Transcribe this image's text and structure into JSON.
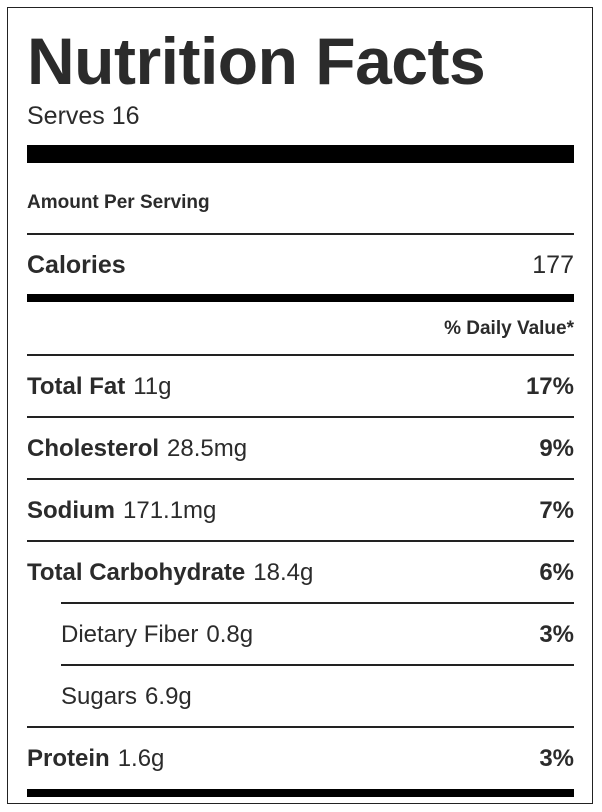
{
  "title": "Nutrition Facts",
  "serves": "Serves 16",
  "amount_per_serving": "Amount Per Serving",
  "calories": {
    "label": "Calories",
    "value": "177"
  },
  "daily_value_header": "% Daily Value*",
  "nutrients": [
    {
      "name": "Total Fat",
      "amount": "11g",
      "pct": "17%"
    },
    {
      "name": "Cholesterol",
      "amount": "28.5mg",
      "pct": "9%"
    },
    {
      "name": "Sodium",
      "amount": "171.1mg",
      "pct": "7%"
    },
    {
      "name": "Total Carbohydrate",
      "amount": "18.4g",
      "pct": "6%"
    },
    {
      "name": "Dietary Fiber",
      "amount": "0.8g",
      "pct": "3%"
    },
    {
      "name": "Sugars",
      "amount": "6.9g",
      "pct": ""
    },
    {
      "name": "Protein",
      "amount": "1.6g",
      "pct": "3%"
    }
  ]
}
